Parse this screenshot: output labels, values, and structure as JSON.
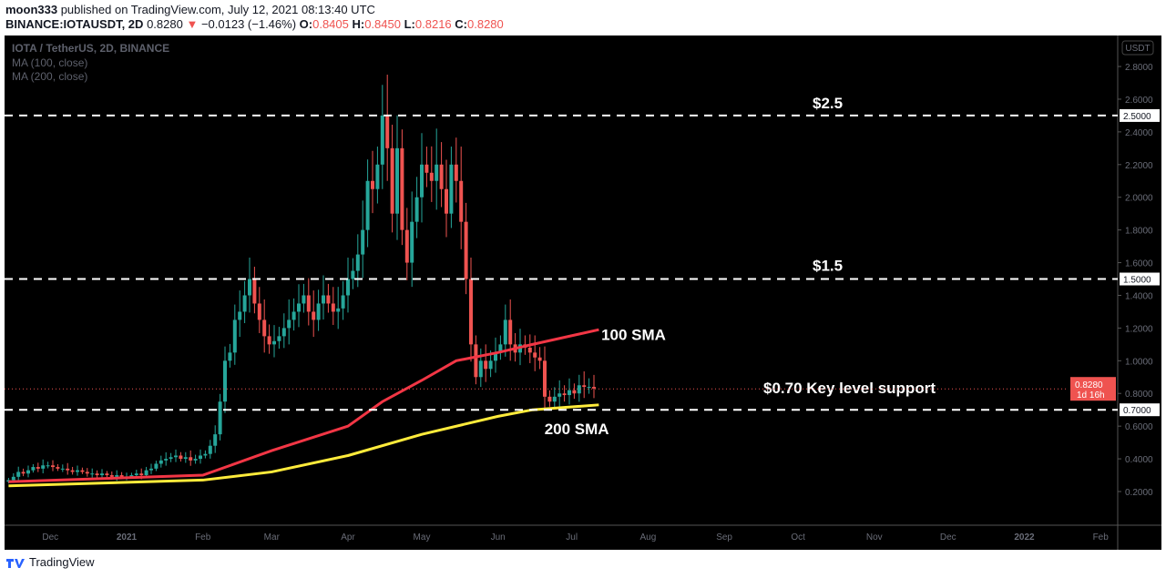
{
  "header": {
    "author": "moon333",
    "published": "published on TradingView.com, July 12, 2021 08:13:40 UTC",
    "symbol": "BINANCE:IOTAUSDT, 2D",
    "last": "0.8280",
    "change": "−0.0123 (−1.46%)",
    "o_label": "O:",
    "o": "0.8405",
    "h_label": "H:",
    "h": "0.8450",
    "l_label": "L:",
    "l": "0.8216",
    "c_label": "C:",
    "c": "0.8280"
  },
  "legend": {
    "title": "IOTA / TetherUS, 2D, BINANCE",
    "ma1": "MA (100, close)",
    "ma2": "MA (200, close)"
  },
  "footer": {
    "brand": "TradingView"
  },
  "chart_data": {
    "type": "candlestick",
    "title": "IOTA / TetherUS, 2D, BINANCE",
    "currency": "USDT",
    "start_date": "2020-11-14",
    "interval_days": 2,
    "closes": [
      0.27,
      0.29,
      0.32,
      0.31,
      0.33,
      0.35,
      0.34,
      0.36,
      0.36,
      0.35,
      0.34,
      0.34,
      0.33,
      0.32,
      0.33,
      0.32,
      0.31,
      0.31,
      0.3,
      0.31,
      0.3,
      0.29,
      0.3,
      0.29,
      0.29,
      0.3,
      0.31,
      0.3,
      0.33,
      0.34,
      0.37,
      0.39,
      0.4,
      0.41,
      0.42,
      0.4,
      0.41,
      0.39,
      0.4,
      0.42,
      0.43,
      0.48,
      0.55,
      0.75,
      1.0,
      1.05,
      1.25,
      1.3,
      1.4,
      1.5,
      1.35,
      1.25,
      1.15,
      1.1,
      1.12,
      1.15,
      1.2,
      1.25,
      1.3,
      1.35,
      1.4,
      1.3,
      1.25,
      1.35,
      1.4,
      1.35,
      1.3,
      1.32,
      1.4,
      1.5,
      1.55,
      1.65,
      1.8,
      2.1,
      2.05,
      2.2,
      2.5,
      2.3,
      1.9,
      2.3,
      1.8,
      1.6,
      1.85,
      2.0,
      2.2,
      2.15,
      2.1,
      2.2,
      2.05,
      1.9,
      2.2,
      2.1,
      1.85,
      1.5,
      1.1,
      0.9,
      1.0,
      0.95,
      1.0,
      1.05,
      1.1,
      1.25,
      1.1,
      1.05,
      1.1,
      1.08,
      1.05,
      1.02,
      1.0,
      0.78,
      0.75,
      0.78,
      0.8,
      0.79,
      0.82,
      0.8,
      0.85,
      0.84,
      0.84,
      0.83
    ],
    "series": [
      {
        "name": "MA (100, close)",
        "color": "#f23645",
        "points": [
          [
            0,
            0.26
          ],
          [
            79,
            0.3
          ],
          [
            107,
            0.45
          ],
          [
            138,
            0.6
          ],
          [
            152,
            0.75
          ],
          [
            168,
            0.88
          ],
          [
            182,
            1.0
          ],
          [
            199,
            1.05
          ],
          [
            213,
            1.1
          ],
          [
            240,
            1.19
          ]
        ]
      },
      {
        "name": "MA (200, close)",
        "color": "#ffeb3b",
        "points": [
          [
            0,
            0.235
          ],
          [
            79,
            0.27
          ],
          [
            107,
            0.32
          ],
          [
            138,
            0.42
          ],
          [
            168,
            0.55
          ],
          [
            199,
            0.66
          ],
          [
            213,
            0.7
          ],
          [
            240,
            0.73
          ]
        ]
      }
    ],
    "y_ticks": [
      "2.8000",
      "2.6000",
      "2.4000",
      "2.2000",
      "2.0000",
      "1.8000",
      "1.6000",
      "1.4000",
      "1.2000",
      "1.0000",
      "0.8000",
      "0.6000",
      "0.4000",
      "0.2000"
    ],
    "y_tick_values": [
      2.8,
      2.6,
      2.4,
      2.2,
      2.0,
      1.8,
      1.6,
      1.4,
      1.2,
      1.0,
      0.8,
      0.6,
      0.4,
      0.2
    ],
    "x_ticks": [
      "Dec",
      "2021",
      "Feb",
      "Mar",
      "Apr",
      "May",
      "Jun",
      "Jul",
      "Aug",
      "Sep",
      "Oct",
      "Nov",
      "Dec",
      "2022",
      "Feb"
    ],
    "x_tick_days": [
      17,
      48,
      79,
      107,
      138,
      168,
      199,
      229,
      260,
      291,
      321,
      352,
      382,
      413,
      444
    ],
    "levels": [
      {
        "value": 2.5,
        "label": "2.5000",
        "text": "$2.5"
      },
      {
        "value": 1.5,
        "label": "1.5000",
        "text": "$1.5"
      },
      {
        "value": 0.7,
        "label": "0.7000",
        "text": "$0.70 Key level support"
      }
    ],
    "annotations": [
      {
        "text": "100 SMA",
        "day": 241,
        "value": 1.16
      },
      {
        "text": "200 SMA",
        "day": 229,
        "value": 0.55
      }
    ],
    "last_price": {
      "value": 0.828,
      "label": "0.8280",
      "countdown": "1d 16h"
    },
    "colors": {
      "up": "#26a69a",
      "down": "#ef5350"
    }
  }
}
